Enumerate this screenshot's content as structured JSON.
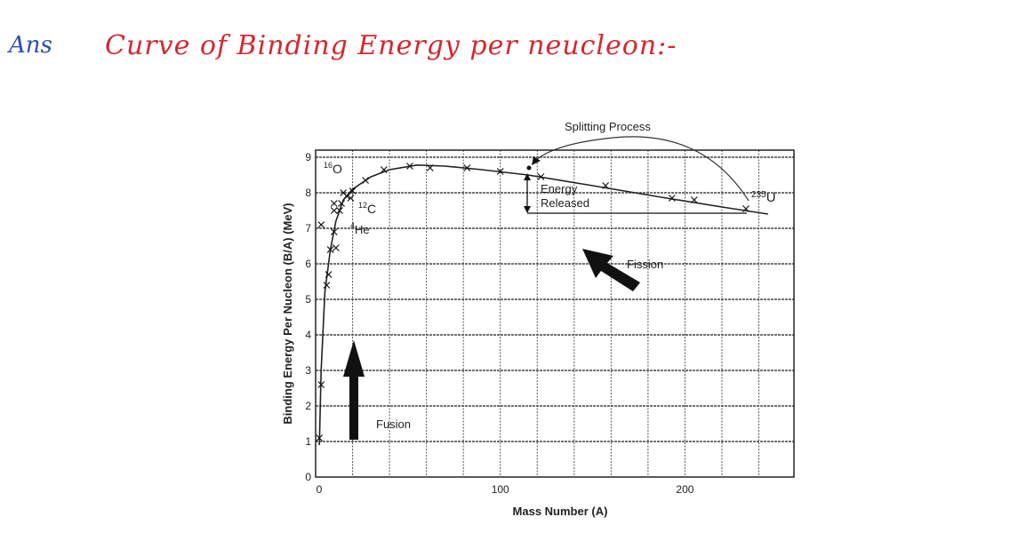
{
  "header": {
    "ans": "Ans",
    "title": "Curve of Binding Energy per neucleon:-"
  },
  "colors": {
    "ans_ink": "#2a4fb5",
    "title_ink": "#d8262c",
    "chart_ink": "#222222"
  },
  "chart_data": {
    "type": "line",
    "xlabel": "Mass Number (A)",
    "ylabel": "Binding Energy Per Nucleon (B/A) (MeV)",
    "xlim": [
      0,
      259
    ],
    "ylim": [
      0,
      9.2
    ],
    "xticks": [
      0,
      100,
      200
    ],
    "yticks": [
      0,
      1,
      2,
      3,
      4,
      5,
      6,
      7,
      8,
      9
    ],
    "grid": true,
    "grid_x_step": 20,
    "grid_y_step": 1,
    "points": [
      {
        "x": 2,
        "y": 1.1
      },
      {
        "x": 3,
        "y": 2.6
      },
      {
        "x": 3,
        "y": 7.1
      },
      {
        "x": 6,
        "y": 5.4
      },
      {
        "x": 7,
        "y": 5.7
      },
      {
        "x": 8,
        "y": 6.4
      },
      {
        "x": 11,
        "y": 6.45
      },
      {
        "x": 10,
        "y": 6.9
      },
      {
        "x": 10,
        "y": 7.5
      },
      {
        "x": 10,
        "y": 7.7
      },
      {
        "x": 13,
        "y": 7.5
      },
      {
        "x": 14,
        "y": 7.7
      },
      {
        "x": 15,
        "y": 8.0
      },
      {
        "x": 17,
        "y": 7.9
      },
      {
        "x": 19,
        "y": 7.85
      },
      {
        "x": 20,
        "y": 8.05
      },
      {
        "x": 27,
        "y": 8.35
      },
      {
        "x": 37,
        "y": 8.65
      },
      {
        "x": 51,
        "y": 8.75
      },
      {
        "x": 62,
        "y": 8.7
      },
      {
        "x": 82,
        "y": 8.7
      },
      {
        "x": 100,
        "y": 8.6
      },
      {
        "x": 122,
        "y": 8.45
      },
      {
        "x": 157,
        "y": 8.2
      },
      {
        "x": 193,
        "y": 7.85
      },
      {
        "x": 205,
        "y": 7.8
      },
      {
        "x": 233,
        "y": 7.55
      }
    ],
    "curve": [
      {
        "x": 2,
        "y": 0.9
      },
      {
        "x": 3,
        "y": 3.0
      },
      {
        "x": 5,
        "y": 5.2
      },
      {
        "x": 8,
        "y": 6.4
      },
      {
        "x": 11,
        "y": 7.2
      },
      {
        "x": 15,
        "y": 7.8
      },
      {
        "x": 20,
        "y": 8.1
      },
      {
        "x": 30,
        "y": 8.45
      },
      {
        "x": 40,
        "y": 8.65
      },
      {
        "x": 55,
        "y": 8.78
      },
      {
        "x": 70,
        "y": 8.75
      },
      {
        "x": 90,
        "y": 8.65
      },
      {
        "x": 115,
        "y": 8.5
      },
      {
        "x": 150,
        "y": 8.2
      },
      {
        "x": 190,
        "y": 7.85
      },
      {
        "x": 220,
        "y": 7.6
      },
      {
        "x": 245,
        "y": 7.4
      }
    ],
    "annotations": {
      "o16": {
        "sup": "16",
        "main": "O"
      },
      "c12": {
        "sup": "12",
        "main": "C"
      },
      "he4": {
        "sup": "4",
        "main": "He"
      },
      "u235": {
        "sup": "235",
        "main": "U"
      },
      "splitting": "Splitting Process",
      "energy1": "Energy",
      "energy2": "Released",
      "fission": "Fission",
      "fusion": "Fusion"
    }
  }
}
